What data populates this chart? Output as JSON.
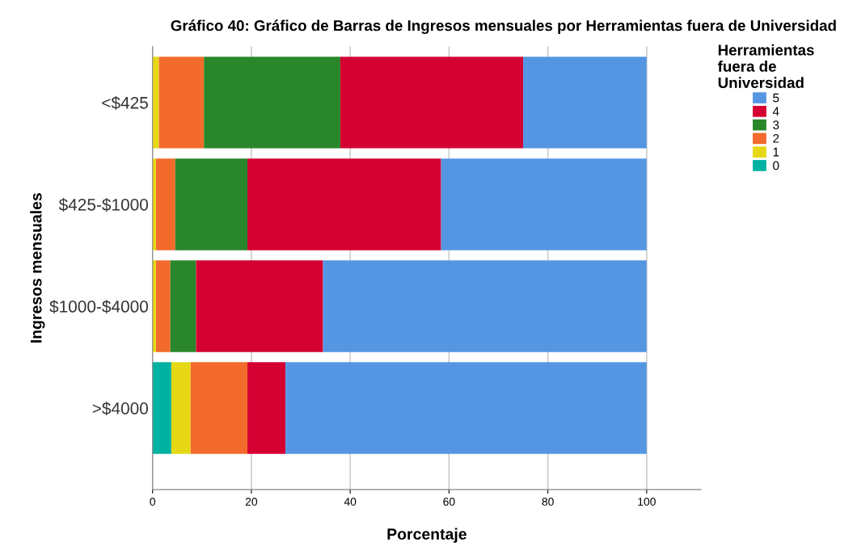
{
  "chart_data": {
    "type": "bar",
    "orientation": "horizontal",
    "stacked": true,
    "title": "Gráfico 40: Gráfico de Barras de Ingresos mensuales por Herramientas fuera de Universidad",
    "xlabel": "Porcentaje",
    "ylabel": "Ingresos mensuales",
    "legend_title": "Herramientas\nfuera de\nUniversidad",
    "categories": [
      "<$425",
      "$425-$1000",
      "$1000-$4000",
      ">$4000"
    ],
    "series": [
      {
        "name": "0",
        "color": "#00b2a1",
        "values": [
          0,
          0,
          0,
          3.8
        ]
      },
      {
        "name": "1",
        "color": "#e6d815",
        "values": [
          1.3,
          0.7,
          0.7,
          3.9
        ]
      },
      {
        "name": "2",
        "color": "#f26b2c",
        "values": [
          9.1,
          3.9,
          2.9,
          11.5
        ]
      },
      {
        "name": "3",
        "color": "#2a862a",
        "values": [
          27.6,
          14.6,
          5.2,
          0
        ]
      },
      {
        "name": "4",
        "color": "#d50032",
        "values": [
          37.0,
          39.2,
          25.7,
          7.7
        ]
      },
      {
        "name": "5",
        "color": "#5596e3",
        "values": [
          25.0,
          41.6,
          65.5,
          73.1
        ]
      }
    ],
    "xlim": [
      0,
      111
    ],
    "xticks": [
      0,
      20,
      40,
      60,
      80,
      100
    ],
    "grid": "x",
    "legend": "right"
  }
}
